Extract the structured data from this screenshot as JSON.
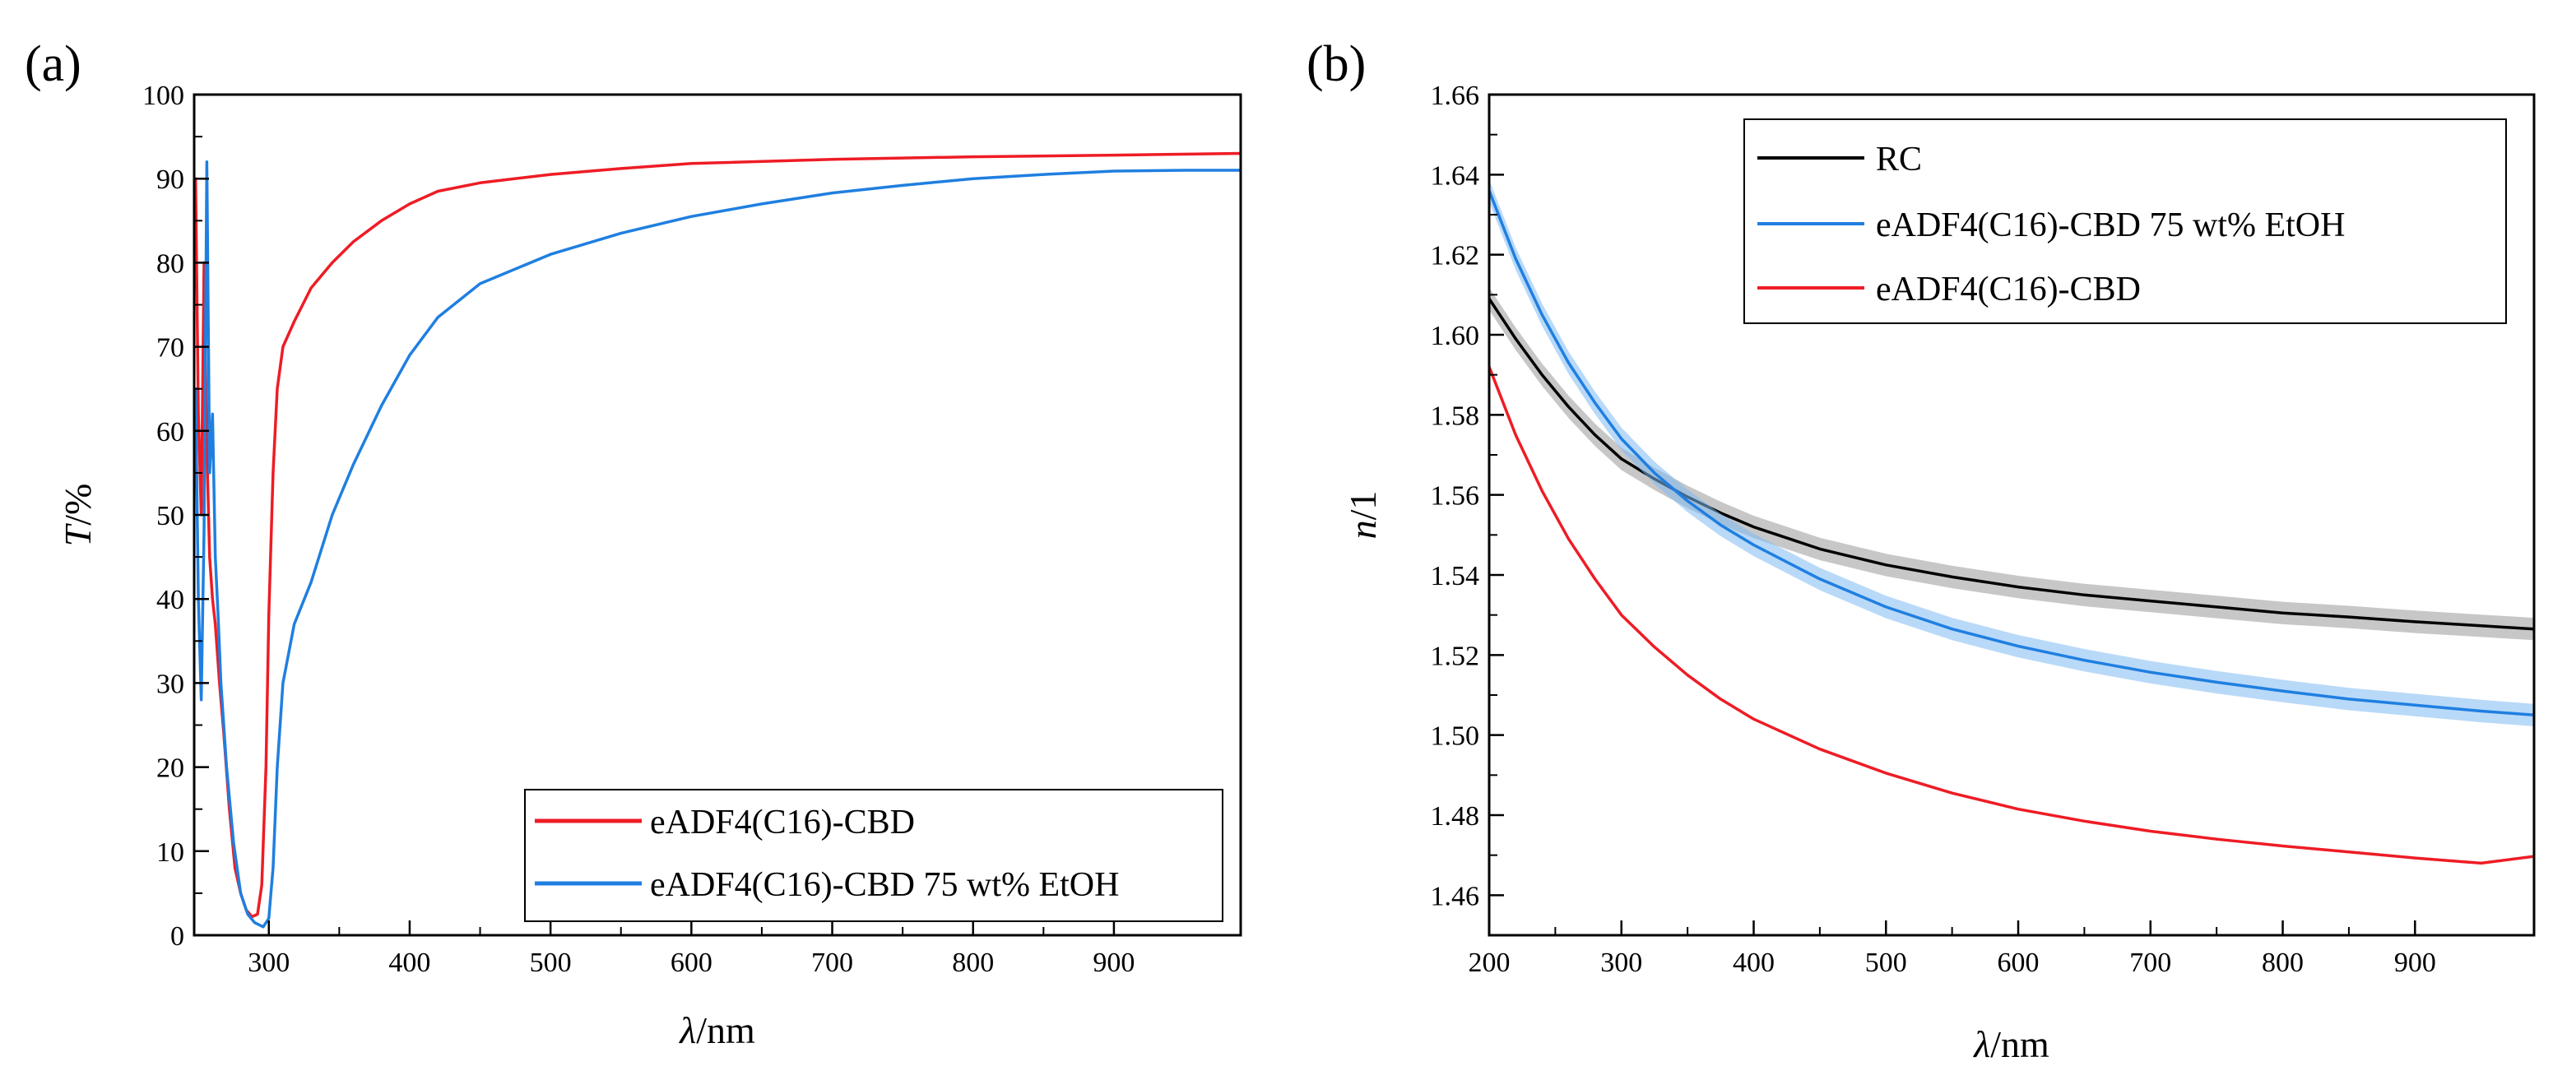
{
  "chart_data": [
    {
      "panel_label": "(a)",
      "type": "line",
      "title": "",
      "xlabel_var": "λ",
      "xlabel_unit": "/nm",
      "ylabel_var": "T",
      "ylabel_unit": "/%",
      "xlim": [
        247,
        990
      ],
      "ylim": [
        0,
        100
      ],
      "xticks": [
        "300",
        "400",
        "500",
        "600",
        "700",
        "800",
        "900"
      ],
      "yticks": [
        "0",
        "10",
        "20",
        "30",
        "40",
        "50",
        "60",
        "70",
        "80",
        "90",
        "100"
      ],
      "legend_position": "bottom-right",
      "grid": false,
      "series": [
        {
          "name": "eADF4(C16)-CBD",
          "color": "#ee1c25",
          "points": [
            [
              248,
              90
            ],
            [
              250,
              62
            ],
            [
              252,
              50
            ],
            [
              254,
              80
            ],
            [
              256,
              58
            ],
            [
              258,
              45
            ],
            [
              260,
              40
            ],
            [
              262,
              37
            ],
            [
              265,
              30
            ],
            [
              268,
              24
            ],
            [
              272,
              15
            ],
            [
              276,
              8
            ],
            [
              280,
              5
            ],
            [
              284,
              3
            ],
            [
              288,
              2.2
            ],
            [
              292,
              2.5
            ],
            [
              295,
              6
            ],
            [
              298,
              20
            ],
            [
              300,
              38
            ],
            [
              303,
              55
            ],
            [
              306,
              65
            ],
            [
              310,
              70
            ],
            [
              318,
              73
            ],
            [
              330,
              77
            ],
            [
              345,
              80
            ],
            [
              360,
              82.5
            ],
            [
              380,
              85
            ],
            [
              400,
              87
            ],
            [
              420,
              88.5
            ],
            [
              450,
              89.5
            ],
            [
              500,
              90.5
            ],
            [
              550,
              91.2
            ],
            [
              600,
              91.8
            ],
            [
              700,
              92.3
            ],
            [
              800,
              92.6
            ],
            [
              900,
              92.8
            ],
            [
              990,
              93
            ]
          ]
        },
        {
          "name": "eADF4(C16)-CBD 75 wt% EtOH",
          "color": "#1f7fe0",
          "points": [
            [
              248,
              65
            ],
            [
              250,
              40
            ],
            [
              252,
              28
            ],
            [
              254,
              48
            ],
            [
              256,
              92
            ],
            [
              258,
              55
            ],
            [
              260,
              62
            ],
            [
              262,
              45
            ],
            [
              264,
              38
            ],
            [
              266,
              30
            ],
            [
              270,
              20
            ],
            [
              275,
              11
            ],
            [
              280,
              5
            ],
            [
              285,
              2.5
            ],
            [
              290,
              1.5
            ],
            [
              296,
              1
            ],
            [
              300,
              2
            ],
            [
              303,
              8
            ],
            [
              306,
              20
            ],
            [
              310,
              30
            ],
            [
              318,
              37
            ],
            [
              330,
              42
            ],
            [
              345,
              50
            ],
            [
              360,
              56
            ],
            [
              380,
              63
            ],
            [
              400,
              69
            ],
            [
              420,
              73.5
            ],
            [
              450,
              77.5
            ],
            [
              500,
              81
            ],
            [
              550,
              83.5
            ],
            [
              600,
              85.5
            ],
            [
              650,
              87
            ],
            [
              700,
              88.3
            ],
            [
              750,
              89.2
            ],
            [
              800,
              90
            ],
            [
              850,
              90.5
            ],
            [
              900,
              90.9
            ],
            [
              950,
              91
            ],
            [
              990,
              91
            ]
          ]
        }
      ]
    },
    {
      "panel_label": "(b)",
      "type": "line",
      "title": "",
      "xlabel_var": "λ",
      "xlabel_unit": "/nm",
      "ylabel_var": "n",
      "ylabel_unit": "/1",
      "xlim": [
        200,
        990
      ],
      "ylim": [
        1.45,
        1.66
      ],
      "xticks": [
        "200",
        "300",
        "400",
        "500",
        "600",
        "700",
        "800",
        "900"
      ],
      "yticks": [
        "1.46",
        "1.48",
        "1.50",
        "1.52",
        "1.54",
        "1.56",
        "1.58",
        "1.60",
        "1.62",
        "1.64",
        "1.66"
      ],
      "legend_position": "top-right",
      "grid": false,
      "series": [
        {
          "name": "RC",
          "color": "#000000",
          "band_color": "#999999",
          "points": [
            [
              200,
              1.609
            ],
            [
              220,
              1.599
            ],
            [
              240,
              1.59
            ],
            [
              260,
              1.582
            ],
            [
              280,
              1.575
            ],
            [
              300,
              1.569
            ],
            [
              325,
              1.564
            ],
            [
              350,
              1.5595
            ],
            [
              375,
              1.5555
            ],
            [
              400,
              1.552
            ],
            [
              450,
              1.5465
            ],
            [
              500,
              1.5425
            ],
            [
              550,
              1.5395
            ],
            [
              600,
              1.537
            ],
            [
              650,
              1.535
            ],
            [
              700,
              1.5335
            ],
            [
              750,
              1.532
            ],
            [
              800,
              1.5305
            ],
            [
              850,
              1.5295
            ],
            [
              900,
              1.5283
            ],
            [
              950,
              1.5273
            ],
            [
              990,
              1.5265
            ]
          ]
        },
        {
          "name": "eADF4(C16)-CBD 75 wt% EtOH",
          "color": "#1f7fe0",
          "band_color": "#7fbaf2",
          "points": [
            [
              200,
              1.636
            ],
            [
              220,
              1.619
            ],
            [
              240,
              1.605
            ],
            [
              260,
              1.593
            ],
            [
              280,
              1.583
            ],
            [
              300,
              1.574
            ],
            [
              325,
              1.5655
            ],
            [
              350,
              1.5585
            ],
            [
              375,
              1.5525
            ],
            [
              400,
              1.5475
            ],
            [
              450,
              1.539
            ],
            [
              500,
              1.532
            ],
            [
              550,
              1.5265
            ],
            [
              600,
              1.5222
            ],
            [
              650,
              1.5187
            ],
            [
              700,
              1.5157
            ],
            [
              750,
              1.5132
            ],
            [
              800,
              1.511
            ],
            [
              850,
              1.509
            ],
            [
              900,
              1.5075
            ],
            [
              950,
              1.506
            ],
            [
              990,
              1.505
            ]
          ]
        },
        {
          "name": "eADF4(C16)-CBD",
          "color": "#ee1c25",
          "points": [
            [
              200,
              1.592
            ],
            [
              220,
              1.575
            ],
            [
              240,
              1.561
            ],
            [
              260,
              1.549
            ],
            [
              280,
              1.539
            ],
            [
              300,
              1.53
            ],
            [
              325,
              1.522
            ],
            [
              350,
              1.515
            ],
            [
              375,
              1.509
            ],
            [
              400,
              1.504
            ],
            [
              450,
              1.4965
            ],
            [
              500,
              1.4905
            ],
            [
              550,
              1.4855
            ],
            [
              600,
              1.4815
            ],
            [
              650,
              1.4785
            ],
            [
              700,
              1.476
            ],
            [
              750,
              1.474
            ],
            [
              800,
              1.4723
            ],
            [
              850,
              1.4708
            ],
            [
              900,
              1.4693
            ],
            [
              950,
              1.468
            ],
            [
              990,
              1.4697
            ]
          ]
        }
      ]
    }
  ]
}
